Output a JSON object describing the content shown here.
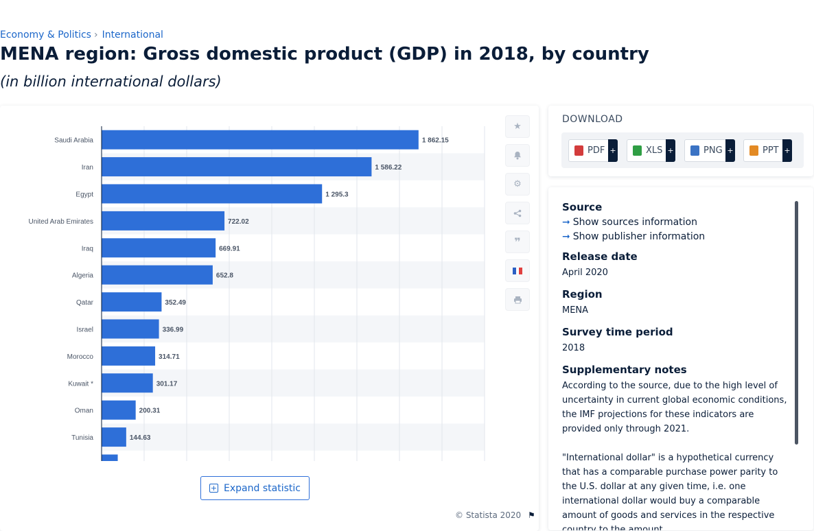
{
  "breadcrumb": {
    "item1": "Economy & Politics",
    "item2": "International"
  },
  "title": "MENA region: Gross domestic product (GDP) in 2018, by country",
  "subtitle": "(in billion international dollars)",
  "chart_data": {
    "type": "bar",
    "orientation": "horizontal",
    "categories": [
      "Saudi Arabia",
      "Iran",
      "Egypt",
      "United Arab Emirates",
      "Iraq",
      "Algeria",
      "Qatar",
      "Israel",
      "Morocco",
      "Kuwait *",
      "Oman",
      "Tunisia"
    ],
    "values": [
      1862.15,
      1586.22,
      1295.3,
      722.02,
      669.91,
      652.8,
      352.49,
      336.99,
      314.71,
      301.17,
      200.31,
      144.63
    ],
    "value_labels": [
      "1 862.15",
      "1 586.22",
      "1 295.3",
      "722.02",
      "669.91",
      "652.8",
      "352.49",
      "336.99",
      "314.71",
      "301.17",
      "200.31",
      "144.63"
    ],
    "partial_bar_value": 95,
    "xlim": [
      0,
      2250
    ],
    "grid": true,
    "bar_color": "#2e6fd8"
  },
  "expand_button": {
    "label": "Expand statistic"
  },
  "copyright": "© Statista 2020",
  "tools": [
    "star-icon",
    "bell-icon",
    "gear-icon",
    "share-icon",
    "quote-icon",
    "french-flag-icon",
    "print-icon"
  ],
  "download": {
    "title": "DOWNLOAD",
    "buttons": [
      {
        "label": "PDF",
        "plus": "+",
        "color": "#d33c3c"
      },
      {
        "label": "XLS",
        "plus": "+",
        "color": "#2f9e44"
      },
      {
        "label": "PNG",
        "plus": "+",
        "color": "#3b73c4"
      },
      {
        "label": "PPT",
        "plus": "+",
        "color": "#e38a24"
      }
    ]
  },
  "info": {
    "source_heading": "Source",
    "show_sources": "Show sources information",
    "show_publisher": "Show publisher information",
    "release_heading": "Release date",
    "release_value": "April 2020",
    "region_heading": "Region",
    "region_value": "MENA",
    "survey_heading": "Survey time period",
    "survey_value": "2018",
    "notes_heading": "Supplementary notes",
    "notes_p1": "According to the source, due to the high level of uncertainty in current global economic conditions, the IMF projections for these indicators are provided only through 2021.",
    "notes_p2": "\"International dollar\" is a hypothetical currency that has a comparable purchase power parity to the U.S. dollar at any given time, i.e. one international dollar would buy a comparable amount of goods and services in the respective country to the amount"
  }
}
